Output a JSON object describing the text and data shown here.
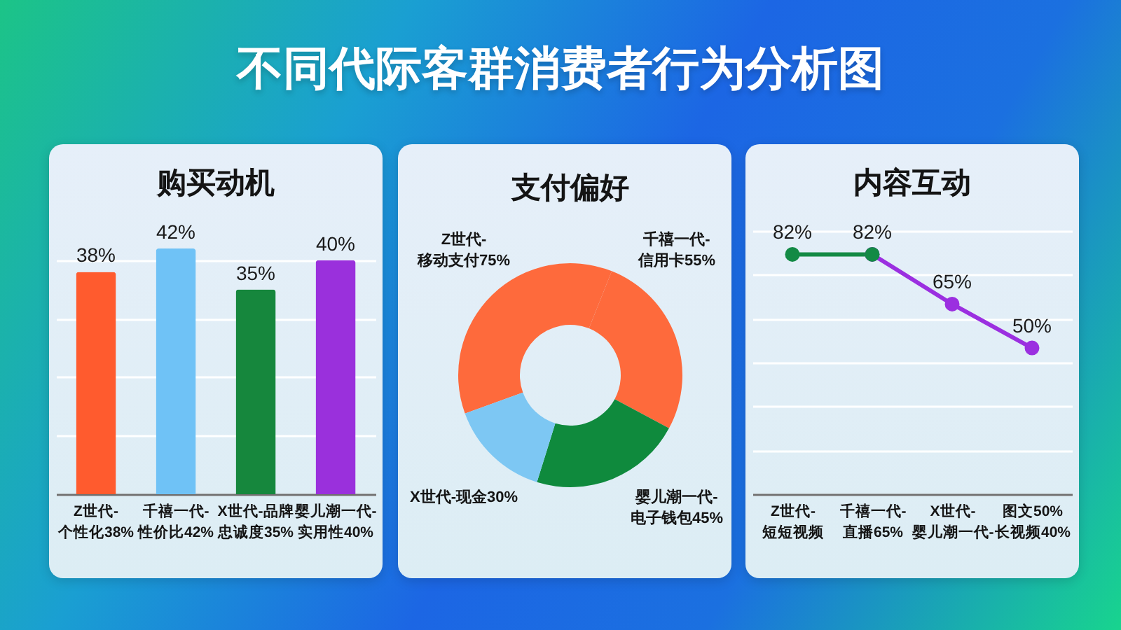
{
  "chart_data": [
    {
      "type": "other",
      "title": "不同代际客群消费者行为分析图"
    },
    {
      "type": "bar",
      "title": "购买动机",
      "categories": [
        "Z世代-个性化38%",
        "千禧一代-性价比42%",
        "X世代-品牌忠诚度35%",
        "婴儿潮一代-实用性40%"
      ],
      "values": [
        38,
        42,
        35,
        40
      ],
      "value_labels": [
        "38%",
        "42%",
        "35%",
        "40%"
      ],
      "colors": [
        "#ff5b2e",
        "#6fc2f6",
        "#16873d",
        "#9a30dc"
      ],
      "yticks": [
        {
          "value": 0,
          "label": null
        },
        {
          "value": 10,
          "label": null
        },
        {
          "value": 20,
          "label": null
        },
        {
          "value": 30,
          "label": null
        },
        {
          "value": 40,
          "label": null
        }
      ],
      "grid": "y",
      "tick_labels": "x"
    },
    {
      "type": "donut",
      "title": "支付偏好",
      "categories": [
        "Z世代-移动支付75%",
        "千禧一代-信用卡55%",
        "婴儿潮一代-电子钱包45%",
        "X世代-现金30%"
      ],
      "values": [
        75,
        55,
        45,
        30
      ],
      "colors": [
        "#fe6a3c",
        "#fe6a3c",
        "#0f8a3d",
        "#7dc7f3"
      ]
    },
    {
      "type": "line",
      "title": "内容互动",
      "categories": [
        "Z世代-短短视频",
        "千禧一代-直播65%",
        "X世代-婴儿潮一代-",
        "图文50%长视频40%"
      ],
      "series": [
        {
          "color": "#138a45",
          "values": [
            82,
            82,
            null,
            null
          ],
          "value_labels": [
            "82%",
            "82%",
            null,
            null
          ]
        },
        {
          "color": "#9b2fe0",
          "values": [
            null,
            82,
            65,
            50
          ],
          "value_labels": [
            null,
            null,
            "65%",
            "50%"
          ]
        }
      ],
      "ylim": [
        0,
        90
      ],
      "yticks": [
        {
          "value": 0,
          "label": null
        },
        {
          "value": 15,
          "label": null
        },
        {
          "value": 30,
          "label": null
        },
        {
          "value": 45,
          "label": null
        },
        {
          "value": 60,
          "label": null
        },
        {
          "value": 75,
          "label": null
        },
        {
          "value": 90,
          "label": null
        }
      ],
      "marker": "circle",
      "grid": "y",
      "tick_labels": "x"
    }
  ]
}
